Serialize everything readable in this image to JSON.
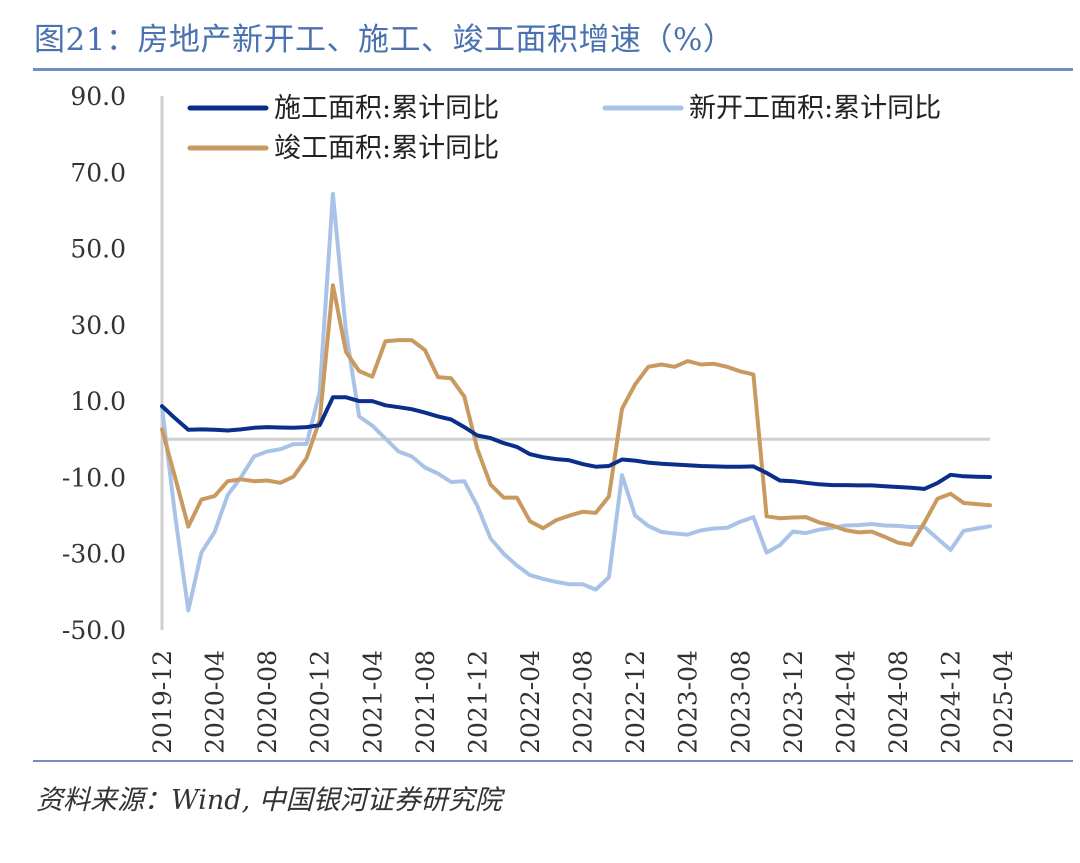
{
  "header": {
    "title": "图21：房地产新开工、施工、竣工面积增速（%）"
  },
  "footer": {
    "source": "资料来源：Wind, 中国银河证券研究院"
  },
  "chart_data": {
    "type": "line",
    "ylim": [
      -50,
      90
    ],
    "yticks": [
      "90.0",
      "70.0",
      "50.0",
      "30.0",
      "10.0",
      "-10.0",
      "-30.0",
      "-50.0"
    ],
    "xticks": [
      "2019-12",
      "2020-04",
      "2020-08",
      "2020-12",
      "2021-04",
      "2021-08",
      "2021-12",
      "2022-04",
      "2022-08",
      "2022-12",
      "2023-04",
      "2023-08",
      "2023-12",
      "2024-04",
      "2024-08",
      "2024-12",
      "2025-04"
    ],
    "x_start": "2019-12",
    "zero_line": true,
    "legend_position": "top",
    "series": [
      {
        "name": "施工面积:累计同比",
        "color": "#0a2f8a",
        "values": [
          8.7,
          5.5,
          2.5,
          2.6,
          2.5,
          2.3,
          2.6,
          3.0,
          3.2,
          3.1,
          3.0,
          3.2,
          3.7,
          11.0,
          11.0,
          10.0,
          10.0,
          8.9,
          8.4,
          7.9,
          7.0,
          6.0,
          5.2,
          3.2,
          1.0,
          0.3,
          -1.0,
          -2.0,
          -3.9,
          -4.7,
          -5.2,
          -5.5,
          -6.5,
          -7.2,
          -7.0,
          -5.3,
          -5.6,
          -6.1,
          -6.4,
          -6.6,
          -6.8,
          -7.0,
          -7.1,
          -7.2,
          -7.2,
          -7.1,
          -8.8,
          -10.8,
          -11.0,
          -11.4,
          -11.8,
          -12.0,
          -12.0,
          -12.1,
          -12.1,
          -12.3,
          -12.5,
          -12.7,
          -13.0,
          -11.5,
          -9.3,
          -9.7,
          -9.8,
          -9.9
        ]
      },
      {
        "name": "新开工面积:累计同比",
        "color": "#a9c3e8",
        "values": [
          8.5,
          -20.0,
          -44.9,
          -29.7,
          -24.3,
          -14.6,
          -10.0,
          -4.5,
          -3.2,
          -2.6,
          -1.3,
          -1.2,
          12.4,
          64.3,
          28.2,
          6.0,
          3.6,
          0.2,
          -3.2,
          -4.5,
          -7.4,
          -9.0,
          -11.2,
          -11.0,
          -17.5,
          -26.0,
          -30.0,
          -33.1,
          -35.6,
          -36.6,
          -37.4,
          -38.0,
          -38.0,
          -39.4,
          -36.2,
          -9.4,
          -20.0,
          -22.7,
          -24.3,
          -24.7,
          -25.0,
          -23.9,
          -23.4,
          -23.2,
          -21.6,
          -20.4,
          -29.7,
          -27.8,
          -24.2,
          -24.6,
          -23.7,
          -23.2,
          -22.6,
          -22.5,
          -22.2,
          -22.6,
          -22.7,
          -23.0,
          -23.0,
          -26.0,
          -29.0,
          -24.0,
          -23.4,
          -22.8
        ]
      },
      {
        "name": "竣工面积:累计同比",
        "color": "#c99a60",
        "values": [
          2.6,
          -10.0,
          -22.9,
          -15.8,
          -14.9,
          -11.0,
          -10.5,
          -11.0,
          -10.8,
          -11.4,
          -9.8,
          -4.9,
          5.0,
          40.4,
          22.9,
          17.9,
          16.4,
          25.7,
          26.0,
          26.0,
          23.4,
          16.3,
          16.0,
          11.2,
          -2.6,
          -11.9,
          -15.3,
          -15.3,
          -21.5,
          -23.3,
          -21.2,
          -20.0,
          -19.0,
          -19.3,
          -15.0,
          8.0,
          14.4,
          19.0,
          19.6,
          19.0,
          20.5,
          19.6,
          19.8,
          19.0,
          17.8,
          17.0,
          -20.2,
          -20.7,
          -20.5,
          -20.4,
          -21.8,
          -22.6,
          -23.8,
          -24.4,
          -24.2,
          -25.6,
          -27.1,
          -27.7,
          -21.9,
          -15.6,
          -14.3,
          -16.7,
          -17.0,
          -17.3
        ]
      }
    ]
  }
}
